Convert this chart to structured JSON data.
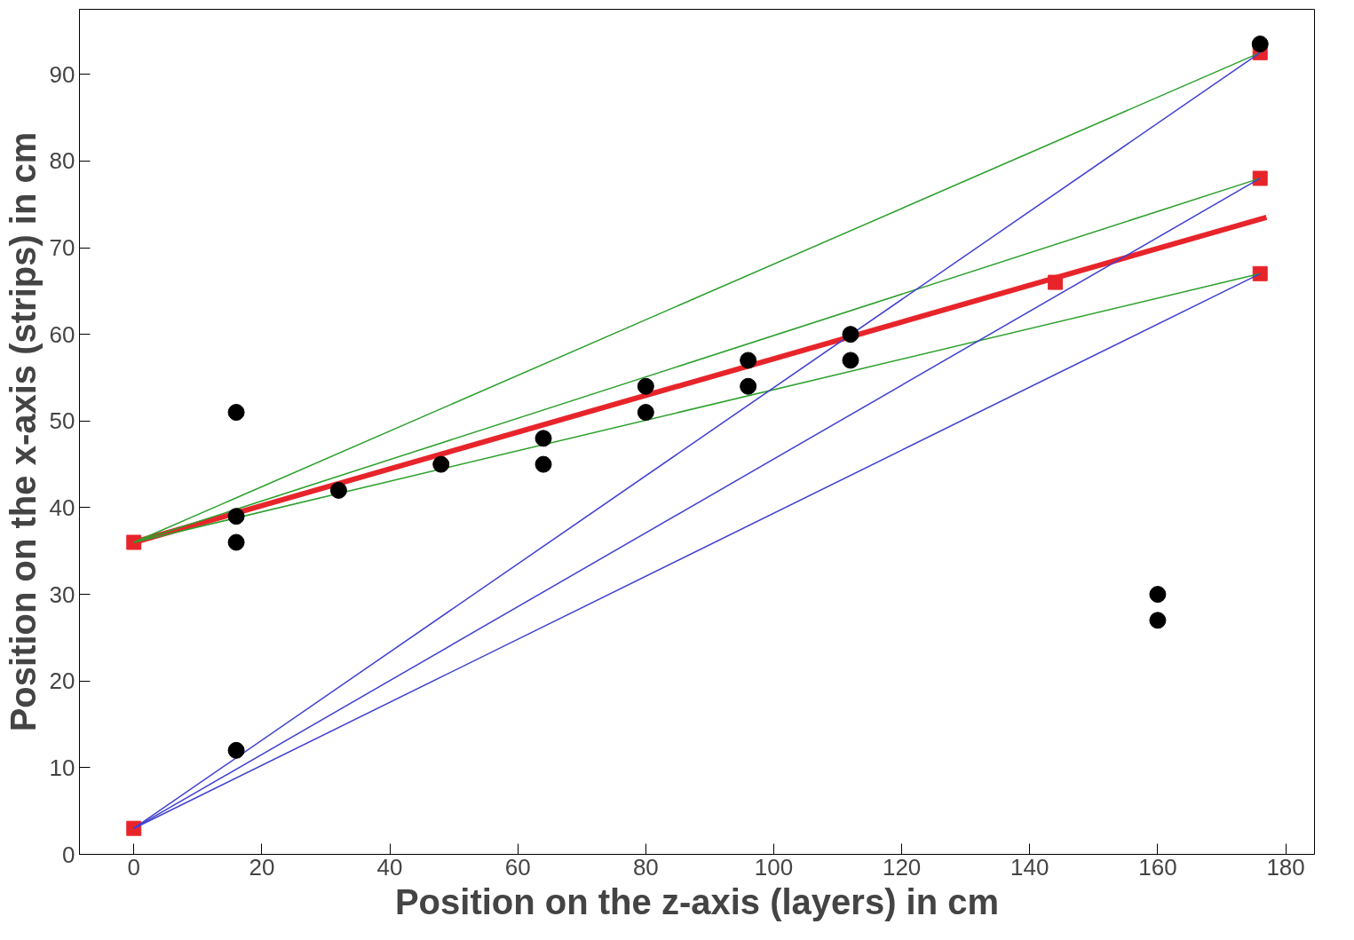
{
  "chart_data": {
    "type": "scatter",
    "xlabel": "Position on the z-axis (layers) in cm",
    "ylabel": "Position on the x-axis (strips) in cm",
    "xlim": [
      -8.5,
      184.5
    ],
    "ylim": [
      0,
      97.5
    ],
    "xticks": [
      0,
      20,
      40,
      60,
      80,
      100,
      120,
      140,
      160,
      180
    ],
    "yticks": [
      0,
      10,
      20,
      30,
      40,
      50,
      60,
      70,
      80,
      90
    ],
    "grid": false,
    "series": [
      {
        "type": "line",
        "color": "#2ca02c",
        "x": [
          0,
          176
        ],
        "values": [
          36,
          92.5
        ],
        "marker": "none"
      },
      {
        "type": "line",
        "color": "#2ca02c",
        "x": [
          0,
          176
        ],
        "values": [
          36,
          78
        ],
        "marker": "none"
      },
      {
        "type": "line",
        "color": "#2ca02c",
        "x": [
          0,
          176
        ],
        "values": [
          36,
          67
        ],
        "marker": "none"
      },
      {
        "type": "line",
        "color": "#4040d0",
        "x": [
          0,
          176
        ],
        "values": [
          3,
          92.5
        ],
        "marker": "none"
      },
      {
        "type": "line",
        "color": "#4040d0",
        "x": [
          0,
          176
        ],
        "values": [
          3,
          78
        ],
        "marker": "none"
      },
      {
        "type": "line",
        "color": "#4040d0",
        "x": [
          0,
          176
        ],
        "values": [
          3,
          67
        ],
        "marker": "none"
      },
      {
        "color": "#000000",
        "marker": "circle",
        "x": [
          16,
          16,
          16,
          16,
          32,
          48,
          64,
          64,
          80,
          80,
          96,
          96,
          112,
          112,
          160,
          160,
          176
        ],
        "values": [
          51,
          39,
          36,
          12,
          42,
          45,
          48,
          45,
          54,
          51,
          57,
          54,
          60,
          57,
          30,
          27,
          93.5
        ]
      },
      {
        "type": "line",
        "color": "#e8242b",
        "x": [
          0,
          177
        ],
        "values": [
          36,
          73.5
        ],
        "marker": "none"
      },
      {
        "color": "#e8242b",
        "marker": "square",
        "x": [
          0,
          0,
          144,
          176,
          176,
          176
        ],
        "values": [
          36,
          3,
          66,
          92.5,
          78,
          67
        ]
      }
    ]
  }
}
